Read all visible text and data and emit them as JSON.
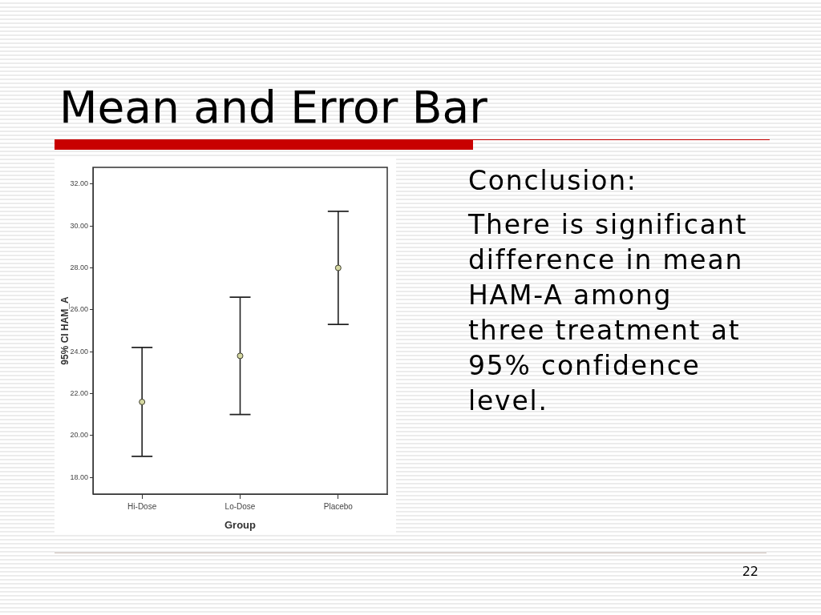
{
  "chart_data": {
    "type": "scatter",
    "title": "Mean and Error Bar",
    "xlabel": "Group",
    "ylabel": "95% CI HAM_A",
    "categories": [
      "Hi-Dose",
      "Lo-Dose",
      "Placebo"
    ],
    "values": [
      21.6,
      23.8,
      28.0
    ],
    "color": "#d6d9a3",
    "errors": [
      [
        19.0,
        24.2
      ],
      [
        21.0,
        26.6
      ],
      [
        25.3,
        30.7
      ]
    ],
    "ylim": [
      17.2,
      32.8
    ],
    "yticks": [
      {
        "value": 18,
        "label": "18.00"
      },
      {
        "value": 20,
        "label": "20.00"
      },
      {
        "value": 22,
        "label": "22.00"
      },
      {
        "value": 24,
        "label": "24.00"
      },
      {
        "value": 26,
        "label": "26.00"
      },
      {
        "value": 28,
        "label": "28.00"
      },
      {
        "value": 30,
        "label": "30.00"
      },
      {
        "value": 32,
        "label": "32.00"
      }
    ],
    "marker": "circle",
    "annotations": [
      "Conclusion:",
      "There is significant difference in mean HAM-A among three treatment at 95% confidence level.",
      "22"
    ]
  }
}
